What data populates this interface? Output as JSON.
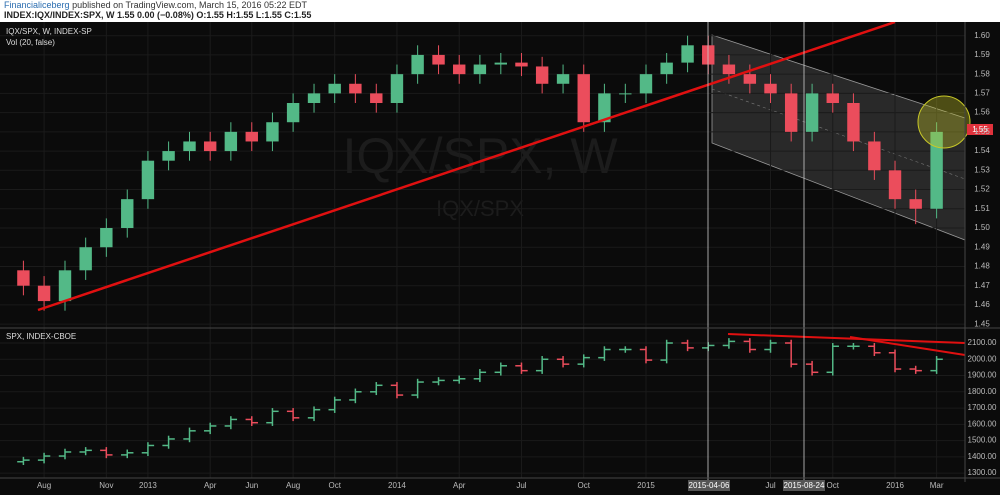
{
  "header": {
    "author": "Financialiceberg",
    "published": "published on TradingView.com, March 15, 2016 05:22 EDT",
    "symbol_line": "INDEX:IQX/INDEX:SPX, W 1.55 0.00 (−0.08%) O:1.55 H:1.55 L:1.55 C:1.55"
  },
  "chart_data": [
    {
      "type": "candlestick",
      "title": "IQX/SPX, W, INDEX-SP",
      "subtitle": "Vol (20, false)",
      "watermark": "IQX/SPX, W",
      "watermark_sub": "IQX/SPX",
      "last_price_label": "1.55",
      "date_markers": [
        "2015-04-06",
        "2015-08-24"
      ],
      "colors": {
        "up": "#53b987",
        "down": "#eb4d5c"
      },
      "x": [
        2012.5,
        2012.583,
        2012.667,
        2012.75,
        2012.833,
        2012.917,
        2013.0,
        2013.083,
        2013.167,
        2013.25,
        2013.333,
        2013.417,
        2013.5,
        2013.583,
        2013.667,
        2013.75,
        2013.833,
        2013.917,
        2014.0,
        2014.083,
        2014.167,
        2014.25,
        2014.333,
        2014.417,
        2014.5,
        2014.583,
        2014.667,
        2014.75,
        2014.833,
        2014.917,
        2015.0,
        2015.083,
        2015.167,
        2015.25,
        2015.333,
        2015.417,
        2015.5,
        2015.583,
        2015.667,
        2015.75,
        2015.833,
        2015.917,
        2016.0,
        2016.083,
        2016.167
      ],
      "open": [
        1.478,
        1.47,
        1.462,
        1.478,
        1.49,
        1.5,
        1.515,
        1.535,
        1.54,
        1.545,
        1.54,
        1.55,
        1.545,
        1.555,
        1.565,
        1.57,
        1.575,
        1.57,
        1.565,
        1.58,
        1.59,
        1.585,
        1.58,
        1.585,
        1.586,
        1.584,
        1.575,
        1.58,
        1.555,
        1.57,
        1.57,
        1.58,
        1.586,
        1.595,
        1.585,
        1.58,
        1.575,
        1.57,
        1.55,
        1.57,
        1.565,
        1.545,
        1.53,
        1.515,
        1.51
      ],
      "high": [
        1.483,
        1.475,
        1.483,
        1.495,
        1.505,
        1.52,
        1.54,
        1.545,
        1.55,
        1.55,
        1.555,
        1.555,
        1.56,
        1.57,
        1.575,
        1.58,
        1.58,
        1.575,
        1.585,
        1.595,
        1.595,
        1.59,
        1.59,
        1.591,
        1.591,
        1.589,
        1.585,
        1.585,
        1.575,
        1.575,
        1.585,
        1.591,
        1.6,
        1.6,
        1.59,
        1.585,
        1.58,
        1.575,
        1.575,
        1.575,
        1.57,
        1.55,
        1.535,
        1.52,
        1.555
      ],
      "low": [
        1.465,
        1.457,
        1.457,
        1.473,
        1.485,
        1.495,
        1.51,
        1.53,
        1.535,
        1.535,
        1.535,
        1.54,
        1.54,
        1.55,
        1.56,
        1.565,
        1.565,
        1.56,
        1.56,
        1.575,
        1.58,
        1.575,
        1.575,
        1.58,
        1.579,
        1.57,
        1.57,
        1.55,
        1.55,
        1.565,
        1.565,
        1.575,
        1.581,
        1.58,
        1.575,
        1.57,
        1.565,
        1.545,
        1.545,
        1.56,
        1.54,
        1.525,
        1.51,
        1.502,
        1.505
      ],
      "close": [
        1.47,
        1.462,
        1.478,
        1.49,
        1.5,
        1.515,
        1.535,
        1.54,
        1.545,
        1.54,
        1.55,
        1.545,
        1.555,
        1.565,
        1.57,
        1.575,
        1.57,
        1.565,
        1.58,
        1.59,
        1.585,
        1.58,
        1.585,
        1.586,
        1.584,
        1.575,
        1.58,
        1.555,
        1.57,
        1.57,
        1.58,
        1.586,
        1.595,
        1.585,
        1.58,
        1.575,
        1.57,
        1.55,
        1.57,
        1.565,
        1.545,
        1.53,
        1.515,
        1.51,
        1.55
      ],
      "ylim": [
        1.448,
        1.604
      ],
      "yticks": [
        1.45,
        1.46,
        1.47,
        1.48,
        1.49,
        {
          "value": 1.5,
          "label": "1.50"
        },
        1.51,
        1.52,
        1.53,
        1.54,
        1.55,
        1.56,
        1.57,
        1.58,
        1.59,
        {
          "value": 1.6,
          "label": "1.60"
        }
      ],
      "xlim": [
        2012.406,
        2016.281
      ],
      "xticks": [
        {
          "value": 2012.583,
          "label": "Aug"
        },
        {
          "value": 2012.833,
          "label": "Nov"
        },
        2013,
        {
          "value": 2013.25,
          "label": "Apr"
        },
        {
          "value": 2013.417,
          "label": "Jun"
        },
        {
          "value": 2013.583,
          "label": "Aug"
        },
        {
          "value": 2013.75,
          "label": "Oct"
        },
        2014,
        {
          "value": 2014.25,
          "label": "Apr"
        },
        {
          "value": 2014.5,
          "label": "Jul"
        },
        {
          "value": 2014.75,
          "label": "Oct"
        },
        2015,
        {
          "value": 2015.5,
          "label": "Jul"
        },
        {
          "value": 2015.75,
          "label": "Oct"
        },
        2016,
        {
          "value": 2016.167,
          "label": "Mar"
        }
      ]
    },
    {
      "type": "ohlc",
      "title": "SPX, INDEX-CBOE",
      "colors": {
        "up": "#53b987",
        "down": "#eb4d5c"
      },
      "x": [
        2012.5,
        2012.583,
        2012.667,
        2012.75,
        2012.833,
        2012.917,
        2013.0,
        2013.083,
        2013.167,
        2013.25,
        2013.333,
        2013.417,
        2013.5,
        2013.583,
        2013.667,
        2013.75,
        2013.833,
        2013.917,
        2014.0,
        2014.083,
        2014.167,
        2014.25,
        2014.333,
        2014.417,
        2014.5,
        2014.583,
        2014.667,
        2014.75,
        2014.833,
        2014.917,
        2015.0,
        2015.083,
        2015.167,
        2015.25,
        2015.333,
        2015.417,
        2015.5,
        2015.583,
        2015.667,
        2015.75,
        2015.833,
        2015.917,
        2016.0,
        2016.083,
        2016.167
      ],
      "open": [
        1370,
        1380,
        1405,
        1430,
        1440,
        1412,
        1425,
        1470,
        1510,
        1560,
        1590,
        1630,
        1610,
        1680,
        1640,
        1690,
        1750,
        1800,
        1840,
        1780,
        1860,
        1870,
        1880,
        1920,
        1960,
        1930,
        2000,
        1970,
        2010,
        2060,
        2060,
        1995,
        2100,
        2070,
        2085,
        2110,
        2060,
        2100,
        1970,
        1920,
        2080,
        2080,
        2040,
        1940,
        1930
      ],
      "high": [
        1400,
        1425,
        1450,
        1460,
        1460,
        1445,
        1490,
        1530,
        1580,
        1610,
        1650,
        1650,
        1700,
        1700,
        1710,
        1770,
        1820,
        1860,
        1860,
        1880,
        1890,
        1900,
        1940,
        1980,
        1980,
        2020,
        2020,
        2030,
        2080,
        2080,
        2080,
        2120,
        2120,
        2105,
        2130,
        2130,
        2120,
        2120,
        1990,
        2100,
        2100,
        2100,
        2060,
        1960,
        2020
      ],
      "low": [
        1350,
        1360,
        1385,
        1410,
        1392,
        1392,
        1405,
        1450,
        1490,
        1540,
        1570,
        1590,
        1590,
        1620,
        1620,
        1670,
        1730,
        1780,
        1760,
        1760,
        1840,
        1850,
        1860,
        1900,
        1910,
        1910,
        1950,
        1950,
        1990,
        2040,
        1975,
        1975,
        2050,
        2050,
        2065,
        2040,
        2040,
        1950,
        1900,
        1900,
        2060,
        2020,
        1920,
        1910,
        1910
      ],
      "close": [
        1380,
        1405,
        1430,
        1440,
        1412,
        1425,
        1470,
        1510,
        1560,
        1590,
        1630,
        1610,
        1680,
        1640,
        1690,
        1750,
        1800,
        1840,
        1780,
        1860,
        1870,
        1880,
        1920,
        1960,
        1930,
        2000,
        1970,
        2010,
        2060,
        2060,
        1995,
        2100,
        2070,
        2085,
        2110,
        2060,
        2100,
        1970,
        1920,
        2080,
        2080,
        2040,
        1940,
        1930,
        2000
      ],
      "ylim": [
        1270,
        2180
      ],
      "yticks": [
        {
          "value": 1300,
          "label": "1300.00"
        },
        {
          "value": 1400,
          "label": "1400.00"
        },
        {
          "value": 1500,
          "label": "1500.00"
        },
        {
          "value": 1600,
          "label": "1600.00"
        },
        {
          "value": 1700,
          "label": "1700.00"
        },
        {
          "value": 1800,
          "label": "1800.00"
        },
        {
          "value": 1900,
          "label": "1900.00"
        },
        {
          "value": 2000,
          "label": "2000.00"
        },
        {
          "value": 2100,
          "label": "2100.00"
        }
      ],
      "xlim": [
        2012.406,
        2016.281
      ]
    }
  ]
}
